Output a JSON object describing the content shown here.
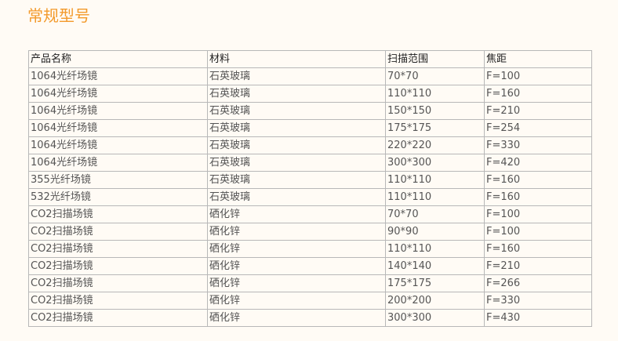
{
  "title": "常规型号",
  "table": {
    "headers": [
      "产品名称",
      "材料",
      "扫描范围",
      "焦距"
    ],
    "rows": [
      [
        "1064光纤场镜",
        "石英玻璃",
        "70*70",
        "F=100"
      ],
      [
        "1064光纤场镜",
        "石英玻璃",
        "110*110",
        "F=160"
      ],
      [
        "1064光纤场镜",
        "石英玻璃",
        "150*150",
        "F=210"
      ],
      [
        "1064光纤场镜",
        "石英玻璃",
        "175*175",
        "F=254"
      ],
      [
        "1064光纤场镜",
        "石英玻璃",
        "220*220",
        "F=330"
      ],
      [
        "1064光纤场镜",
        "石英玻璃",
        "300*300",
        "F=420"
      ],
      [
        "355光纤场镜",
        "石英玻璃",
        "110*110",
        "F=160"
      ],
      [
        "532光纤场镜",
        "石英玻璃",
        "110*110",
        "F=160"
      ],
      [
        "CO2扫描场镜",
        "硒化锌",
        "70*70",
        "F=100"
      ],
      [
        "CO2扫描场镜",
        "硒化锌",
        "90*90",
        "F=100"
      ],
      [
        "CO2扫描场镜",
        "硒化锌",
        "110*110",
        "F=160"
      ],
      [
        "CO2扫描场镜",
        "硒化锌",
        "140*140",
        "F=210"
      ],
      [
        "CO2扫描场镜",
        "硒化锌",
        "175*175",
        "F=266"
      ],
      [
        "CO2扫描场镜",
        "硒化锌",
        "200*200",
        "F=330"
      ],
      [
        "CO2扫描场镜",
        "硒化锌",
        "300*300",
        "F=430"
      ]
    ]
  },
  "colors": {
    "title": "#f39a2b",
    "background": "#fffbf5"
  }
}
